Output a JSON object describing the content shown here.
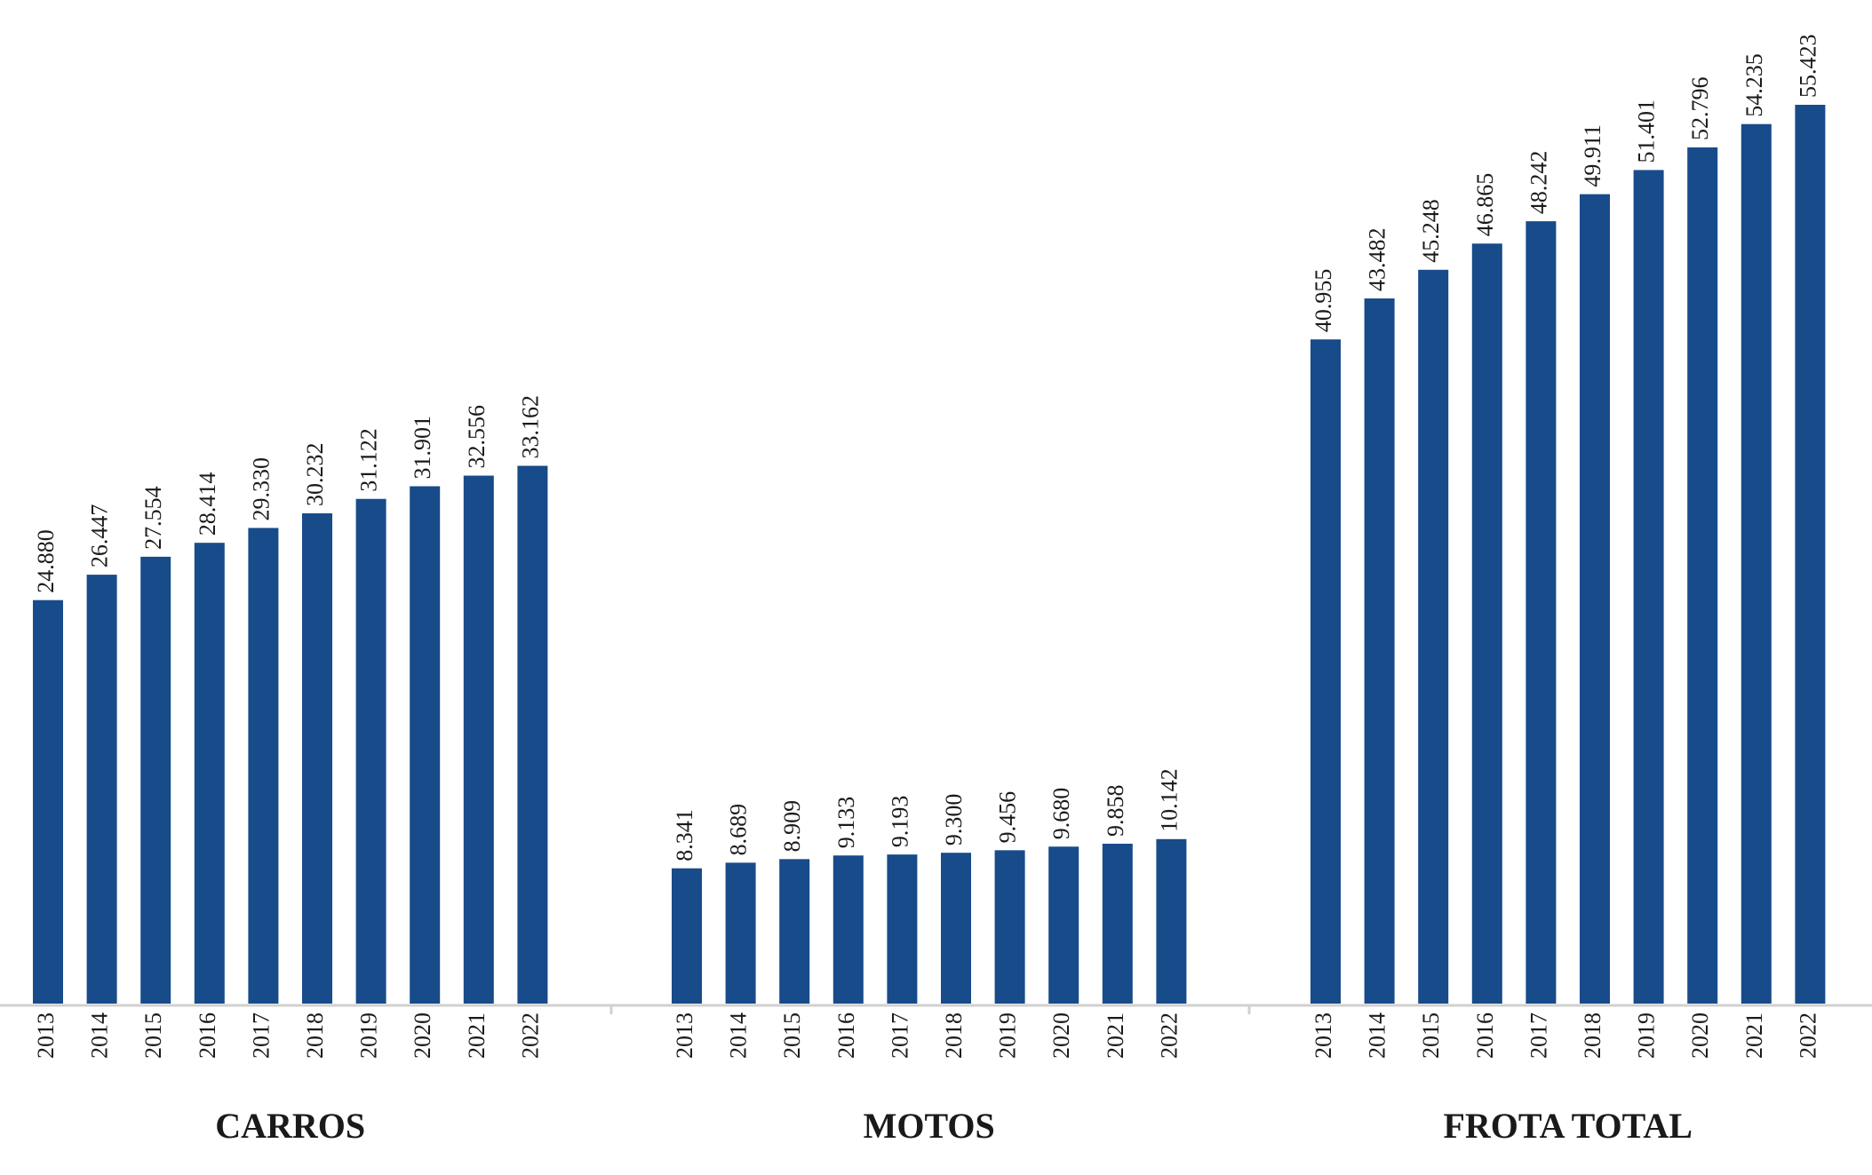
{
  "chart_data": [
    {
      "type": "bar",
      "title": "CARROS",
      "color": "#174b8a",
      "categories": [
        "2013",
        "2014",
        "2015",
        "2016",
        "2017",
        "2018",
        "2019",
        "2020",
        "2021",
        "2022"
      ],
      "values": [
        24880,
        26447,
        27554,
        28414,
        29330,
        30232,
        31122,
        31901,
        32556,
        33162
      ],
      "value_labels": [
        "24.880",
        "26.447",
        "27.554",
        "28.414",
        "29.330",
        "30.232",
        "31.122",
        "31.901",
        "32.556",
        "33.162"
      ]
    },
    {
      "type": "bar",
      "title": "MOTOS",
      "color": "#174b8a",
      "categories": [
        "2013",
        "2014",
        "2015",
        "2016",
        "2017",
        "2018",
        "2019",
        "2020",
        "2021",
        "2022"
      ],
      "values": [
        8341,
        8689,
        8909,
        9133,
        9193,
        9300,
        9456,
        9680,
        9858,
        10142
      ],
      "value_labels": [
        "8.341",
        "8.689",
        "8.909",
        "9.133",
        "9.193",
        "9.300",
        "9.456",
        "9.680",
        "9.858",
        "10.142"
      ]
    },
    {
      "type": "bar",
      "title": "FROTA TOTAL",
      "color": "#174b8a",
      "categories": [
        "2013",
        "2014",
        "2015",
        "2016",
        "2017",
        "2018",
        "2019",
        "2020",
        "2021",
        "2022"
      ],
      "values": [
        40955,
        43482,
        45248,
        46865,
        48242,
        49911,
        51401,
        52796,
        54235,
        55423
      ],
      "value_labels": [
        "40.955",
        "43.482",
        "45.248",
        "46.865",
        "48.242",
        "49.911",
        "51.401",
        "52.796",
        "54.235",
        "55.423"
      ]
    }
  ]
}
